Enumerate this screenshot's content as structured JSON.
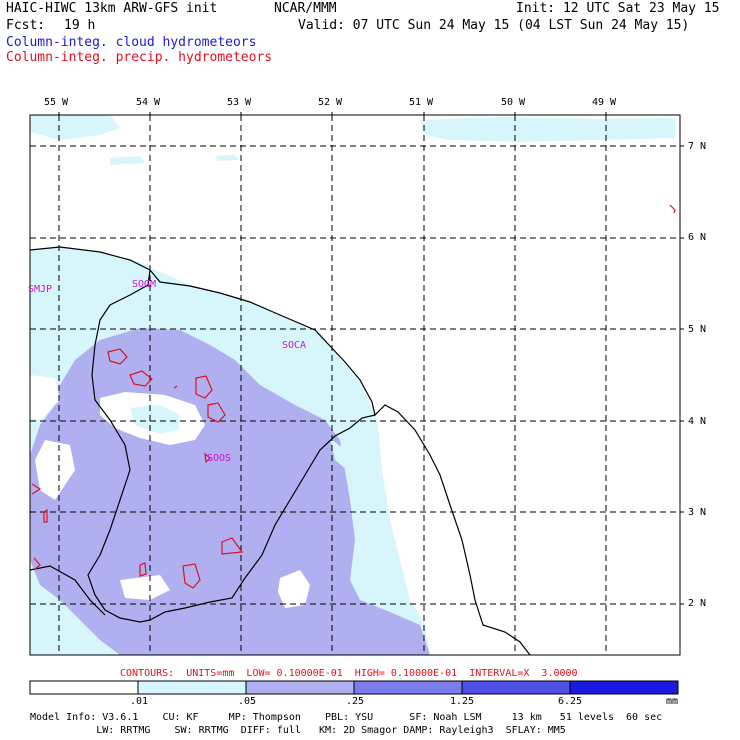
{
  "header": {
    "model_title": "HAIC-HIWC 13km ARW-GFS init",
    "center": "NCAR/MMM",
    "init": "Init: 12 UTC Sat 23 May 15",
    "fcst_label": "Fcst:",
    "fcst_value": "19 h",
    "valid": "Valid: 07 UTC Sun 24 May 15 (04 LST Sun 24 May 15)",
    "field_cloud": "Column-integ. cloud hydrometeors",
    "field_precip": "Column-integ. precip. hydrometeors"
  },
  "colors": {
    "cloud_label": "#1a1ad6",
    "precip_label": "#e0101e",
    "shade_1": "#d6f6fb",
    "shade_2": "#b0b0f0",
    "shade_3": "#7c7cec",
    "shade_4": "#4f4fe6",
    "shade_5": "#1a1ae0",
    "station": "#d010d0"
  },
  "axes": {
    "lon_labels": [
      "55 W",
      "54 W",
      "53 W",
      "52 W",
      "51 W",
      "50 W",
      "49 W"
    ],
    "lat_labels": [
      "7 N",
      "6 N",
      "5 N",
      "4 N",
      "3 N",
      "2 N"
    ]
  },
  "stations": [
    "SMJP",
    "SOGM",
    "SOCA",
    "SOOS"
  ],
  "contours_line": "CONTOURS:  UNITS=mm  LOW= 0.10000E-01  HIGH= 0.10000E-01  INTERVAL=X  3.0000",
  "colorbar": {
    "labels": [
      ".01",
      ".05",
      ".25",
      "1.25",
      "6.25"
    ],
    "units": "mm"
  },
  "model_info": {
    "line1": "Model Info: V3.6.1    CU: KF     MP: Thompson    PBL: YSU      SF: Noah LSM     13 km   51 levels  60 sec",
    "line2": "           LW: RRTMG    SW: RRTMG  DIFF: full   KM: 2D Smagor DAMP: Rayleigh3  SFLAY: MM5"
  }
}
